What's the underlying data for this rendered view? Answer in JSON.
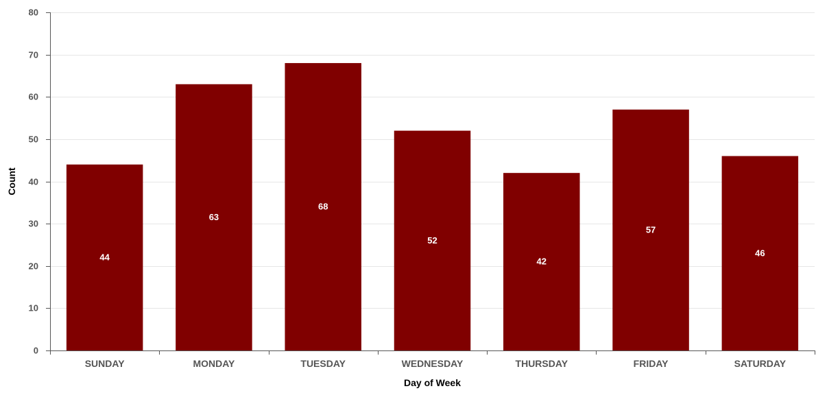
{
  "chart_data": {
    "type": "bar",
    "title": "",
    "xlabel": "Day of Week",
    "ylabel": "Count",
    "categories": [
      "SUNDAY",
      "MONDAY",
      "TUESDAY",
      "WEDNESDAY",
      "THURSDAY",
      "FRIDAY",
      "SATURDAY"
    ],
    "values": [
      44,
      63,
      68,
      52,
      42,
      57,
      46
    ],
    "ylim": [
      0,
      80
    ],
    "yticks": [
      0,
      10,
      20,
      30,
      40,
      50,
      60,
      70,
      80
    ],
    "grid": true,
    "legend": "none",
    "colors": {
      "bar": "#800000",
      "grid": "#e6e6e6",
      "axis": "#555555",
      "data_label": "#ffffff"
    }
  }
}
